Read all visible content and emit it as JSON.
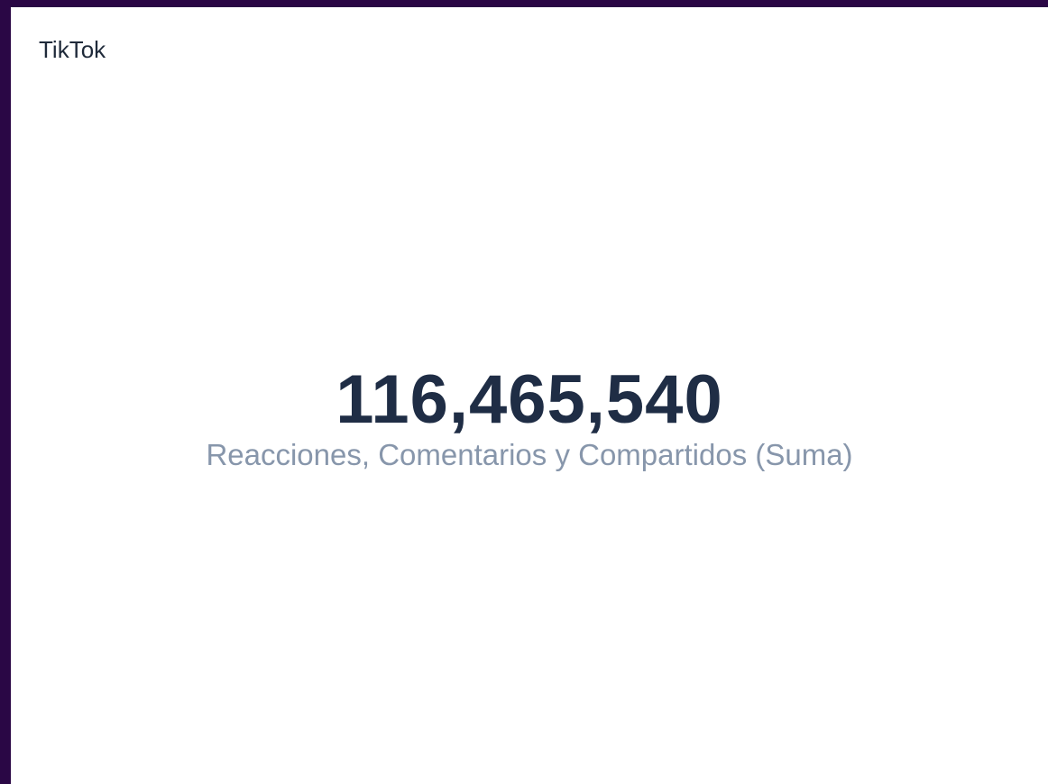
{
  "card": {
    "title": "TikTok",
    "value": "116,465,540",
    "label": "Reacciones, Comentarios y Compartidos (Suma)"
  }
}
